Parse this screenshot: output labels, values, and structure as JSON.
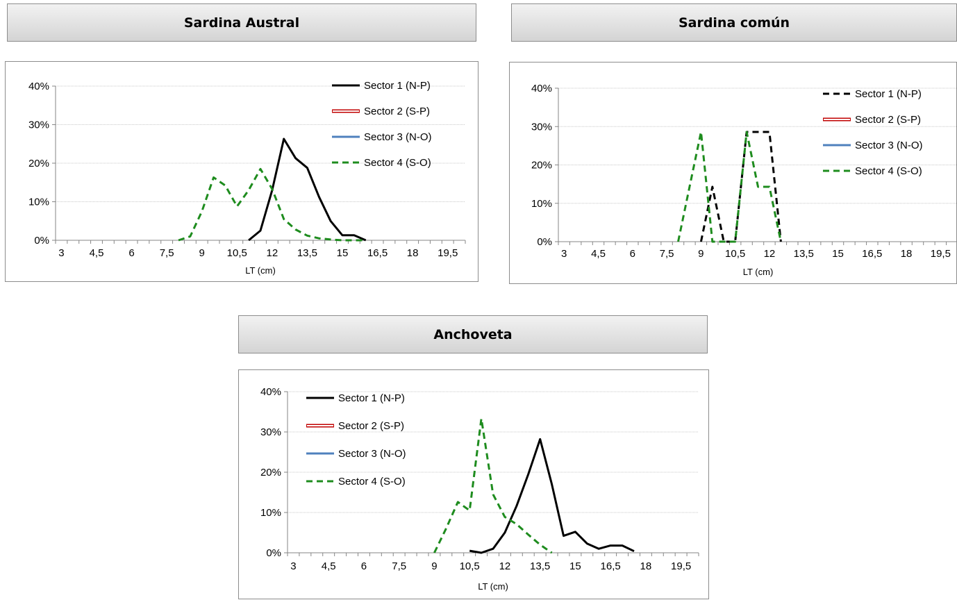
{
  "panels": [
    {
      "id": "austral",
      "title": "Sardina Austral"
    },
    {
      "id": "comun",
      "title": "Sardina común"
    },
    {
      "id": "anchoveta",
      "title": "Anchoveta"
    }
  ],
  "chart_data": [
    {
      "type": "line",
      "title": "Sardina Austral",
      "xlabel": "LT (cm)",
      "ylabel": "",
      "categories": [
        "3",
        "3,5",
        "4",
        "4,5",
        "5",
        "5,5",
        "6",
        "6,5",
        "7",
        "7,5",
        "8",
        "8,5",
        "9",
        "9,5",
        "10",
        "10,5",
        "11",
        "11,5",
        "12",
        "12,5",
        "13",
        "13,5",
        "14",
        "14,5",
        "15",
        "15,5",
        "16",
        "16,5",
        "17",
        "17,5",
        "18",
        "18,5",
        "19",
        "19,5",
        "20"
      ],
      "tick_labels": [
        "3",
        "4,5",
        "6",
        "7,5",
        "9",
        "10,5",
        "12",
        "13,5",
        "15",
        "16,5",
        "18",
        "19,5"
      ],
      "ylim": [
        0,
        40
      ],
      "yticks": [
        "0%",
        "10%",
        "20%",
        "30%",
        "40%"
      ],
      "legend_position": "top-right",
      "series": [
        {
          "name": "Sector 1 (N-P)",
          "style": "solid-black",
          "points": [
            [
              11,
              0
            ],
            [
              11.5,
              2.5
            ],
            [
              12,
              13
            ],
            [
              12.5,
              26.3
            ],
            [
              13,
              21.3
            ],
            [
              13.5,
              18.8
            ],
            [
              14,
              11.3
            ],
            [
              14.5,
              5
            ],
            [
              15,
              1.3
            ],
            [
              15.5,
              1.3
            ],
            [
              16,
              0
            ]
          ]
        },
        {
          "name": "Sector 2 (S-P)",
          "style": "double-red",
          "points": []
        },
        {
          "name": "Sector 3 (N-O)",
          "style": "solid-blue",
          "points": []
        },
        {
          "name": "Sector 4 (S-O)",
          "style": "dashed-green",
          "points": [
            [
              8,
              0
            ],
            [
              8.5,
              1
            ],
            [
              9,
              7.5
            ],
            [
              9.5,
              16.3
            ],
            [
              10,
              14.2
            ],
            [
              10.5,
              8.8
            ],
            [
              11,
              13
            ],
            [
              11.5,
              18.5
            ],
            [
              12,
              13.3
            ],
            [
              12.5,
              5.5
            ],
            [
              13,
              2.8
            ],
            [
              13.5,
              1.2
            ],
            [
              14,
              0.5
            ],
            [
              14.5,
              0.2
            ],
            [
              15,
              0
            ],
            [
              15.5,
              0
            ],
            [
              16,
              0
            ]
          ]
        }
      ]
    },
    {
      "type": "line",
      "title": "Sardina común",
      "xlabel": "LT (cm)",
      "ylabel": "",
      "categories": [
        "3",
        "3,5",
        "4",
        "4,5",
        "5",
        "5,5",
        "6",
        "6,5",
        "7",
        "7,5",
        "8",
        "8,5",
        "9",
        "9,5",
        "10",
        "10,5",
        "11",
        "11,5",
        "12",
        "12,5",
        "13",
        "13,5",
        "14",
        "14,5",
        "15",
        "15,5",
        "16",
        "16,5",
        "17",
        "17,5",
        "18",
        "18,5",
        "19",
        "19,5",
        "20"
      ],
      "tick_labels": [
        "3",
        "4,5",
        "6",
        "7,5",
        "9",
        "10,5",
        "12",
        "13,5",
        "15",
        "16,5",
        "18",
        "19,5"
      ],
      "ylim": [
        0,
        40
      ],
      "yticks": [
        "0%",
        "10%",
        "20%",
        "30%",
        "40%"
      ],
      "legend_position": "top-right",
      "series": [
        {
          "name": "Sector 1 (N-P)",
          "style": "dashed-black",
          "points": [
            [
              9,
              0
            ],
            [
              9.5,
              14.3
            ],
            [
              10,
              0
            ],
            [
              10.5,
              0
            ],
            [
              11,
              28.6
            ],
            [
              11.5,
              28.6
            ],
            [
              12,
              28.6
            ],
            [
              12.5,
              0
            ]
          ]
        },
        {
          "name": "Sector 2 (S-P)",
          "style": "double-red",
          "points": []
        },
        {
          "name": "Sector 3 (N-O)",
          "style": "solid-blue",
          "points": []
        },
        {
          "name": "Sector 4 (S-O)",
          "style": "dashed-green",
          "points": [
            [
              8,
              0
            ],
            [
              8.5,
              14.3
            ],
            [
              9,
              28.6
            ],
            [
              9.5,
              0
            ],
            [
              10,
              0
            ],
            [
              10.5,
              0
            ],
            [
              11,
              28.6
            ],
            [
              11.5,
              14.3
            ],
            [
              12,
              14.3
            ],
            [
              12.5,
              0
            ]
          ]
        }
      ]
    },
    {
      "type": "line",
      "title": "Anchoveta",
      "xlabel": "LT (cm)",
      "ylabel": "",
      "categories": [
        "3",
        "3,5",
        "4",
        "4,5",
        "5",
        "5,5",
        "6",
        "6,5",
        "7",
        "7,5",
        "8",
        "8,5",
        "9",
        "9,5",
        "10",
        "10,5",
        "11",
        "11,5",
        "12",
        "12,5",
        "13",
        "13,5",
        "14",
        "14,5",
        "15",
        "15,5",
        "16",
        "16,5",
        "17",
        "17,5",
        "18",
        "18,5",
        "19",
        "19,5",
        "20"
      ],
      "tick_labels": [
        "3",
        "4,5",
        "6",
        "7,5",
        "9",
        "10,5",
        "12",
        "13,5",
        "15",
        "16,5",
        "18",
        "19,5"
      ],
      "ylim": [
        0,
        40
      ],
      "yticks": [
        "0%",
        "10%",
        "20%",
        "30%",
        "40%"
      ],
      "legend_position": "top-left",
      "series": [
        {
          "name": "Sector 1 (N-P)",
          "style": "solid-black",
          "points": [
            [
              10.5,
              0.5
            ],
            [
              11,
              0
            ],
            [
              11.5,
              1
            ],
            [
              12,
              5
            ],
            [
              12.5,
              11.6
            ],
            [
              13,
              19.5
            ],
            [
              13.5,
              28.2
            ],
            [
              14,
              17
            ],
            [
              14.5,
              4.2
            ],
            [
              15,
              5.2
            ],
            [
              15.5,
              2.3
            ],
            [
              16,
              1
            ],
            [
              16.5,
              1.8
            ],
            [
              17,
              1.8
            ],
            [
              17.5,
              0.4
            ]
          ]
        },
        {
          "name": "Sector 2 (S-P)",
          "style": "double-red",
          "points": []
        },
        {
          "name": "Sector 3 (N-O)",
          "style": "solid-blue",
          "points": []
        },
        {
          "name": "Sector 4 (S-O)",
          "style": "dashed-green",
          "points": [
            [
              9,
              0
            ],
            [
              9.5,
              6
            ],
            [
              10,
              12.6
            ],
            [
              10.5,
              10.5
            ],
            [
              11,
              33.3
            ],
            [
              11.5,
              14.5
            ],
            [
              12,
              8.9
            ],
            [
              12.5,
              7.1
            ],
            [
              13,
              4.5
            ],
            [
              13.5,
              2
            ],
            [
              14,
              0
            ]
          ]
        }
      ]
    }
  ],
  "colors": {
    "solid-black": "#000000",
    "dashed-black": "#000000",
    "double-red": "#c00000",
    "solid-blue": "#4f81bd",
    "dashed-green": "#1e8c1e",
    "gridline": "#c8c8c8",
    "axis": "#868686"
  }
}
